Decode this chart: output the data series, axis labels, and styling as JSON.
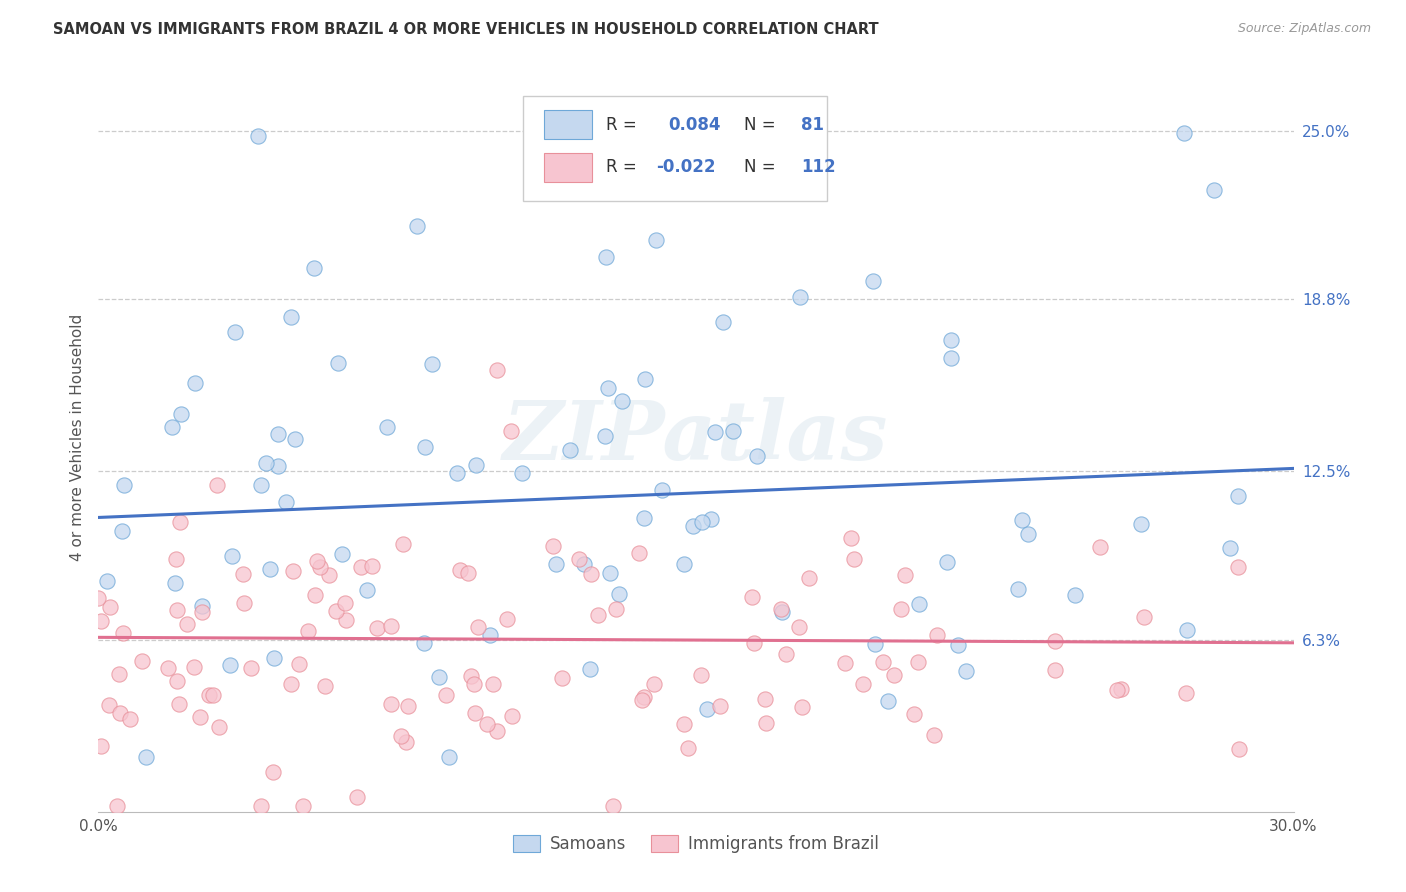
{
  "title": "SAMOAN VS IMMIGRANTS FROM BRAZIL 4 OR MORE VEHICLES IN HOUSEHOLD CORRELATION CHART",
  "source": "Source: ZipAtlas.com",
  "ylabel": "4 or more Vehicles in Household",
  "xmin": 0.0,
  "xmax": 0.3,
  "ymin": 0.0,
  "ymax": 0.275,
  "ytick_right_labels": [
    "25.0%",
    "18.8%",
    "12.5%",
    "6.3%"
  ],
  "ytick_right_values": [
    0.25,
    0.188,
    0.125,
    0.063
  ],
  "blue_R": 0.084,
  "blue_N": 81,
  "pink_R": -0.022,
  "pink_N": 112,
  "blue_fill_color": "#c5d8ef",
  "pink_fill_color": "#f7c5d0",
  "blue_edge_color": "#6fa8d8",
  "pink_edge_color": "#e8909a",
  "blue_line_color": "#4472c4",
  "pink_line_color": "#e07090",
  "watermark": "ZIPatlas",
  "legend_label_blue": "Samoans",
  "legend_label_pink": "Immigrants from Brazil",
  "blue_trend_x": [
    0.0,
    0.3
  ],
  "blue_trend_y": [
    0.108,
    0.126
  ],
  "pink_trend_x": [
    0.0,
    0.3
  ],
  "pink_trend_y": [
    0.064,
    0.062
  ]
}
